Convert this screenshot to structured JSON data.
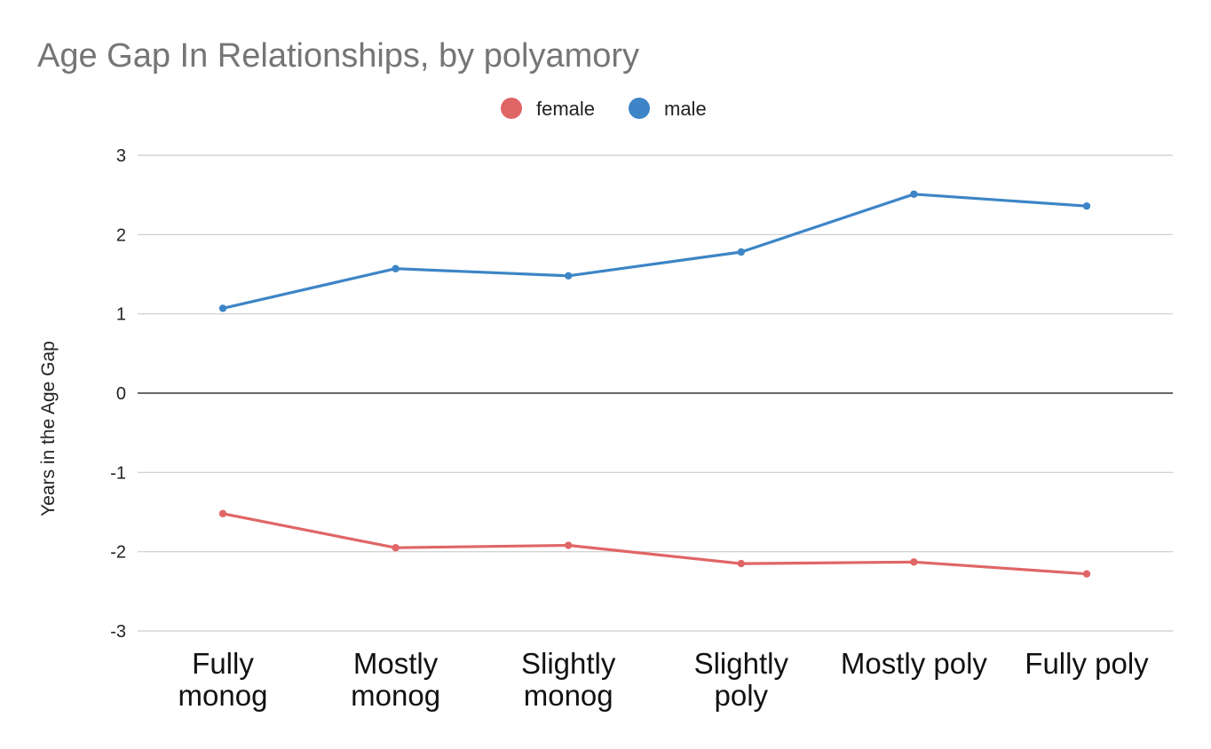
{
  "chart_data": {
    "type": "line",
    "title": "Age Gap In Relationships, by polyamory",
    "xlabel": "",
    "ylabel": "Years in the Age Gap",
    "categories": [
      [
        "Fully",
        "monog"
      ],
      [
        "Mostly",
        "monog"
      ],
      [
        "Slightly",
        "monog"
      ],
      [
        "Slightly",
        "poly"
      ],
      [
        "Mostly poly"
      ],
      [
        "Fully poly"
      ]
    ],
    "series": [
      {
        "name": "female",
        "color": "#e06666",
        "values": [
          -1.52,
          -1.95,
          -1.92,
          -2.15,
          -2.13,
          -2.28
        ]
      },
      {
        "name": "male",
        "color": "#3d85c6",
        "values": [
          1.07,
          1.57,
          1.48,
          1.78,
          2.51,
          2.36
        ]
      }
    ],
    "ylim": [
      -3,
      3
    ],
    "yticks": [
      3,
      2,
      1,
      0,
      -1,
      -2,
      -3
    ],
    "grid": true,
    "legend_position": "top-center"
  }
}
